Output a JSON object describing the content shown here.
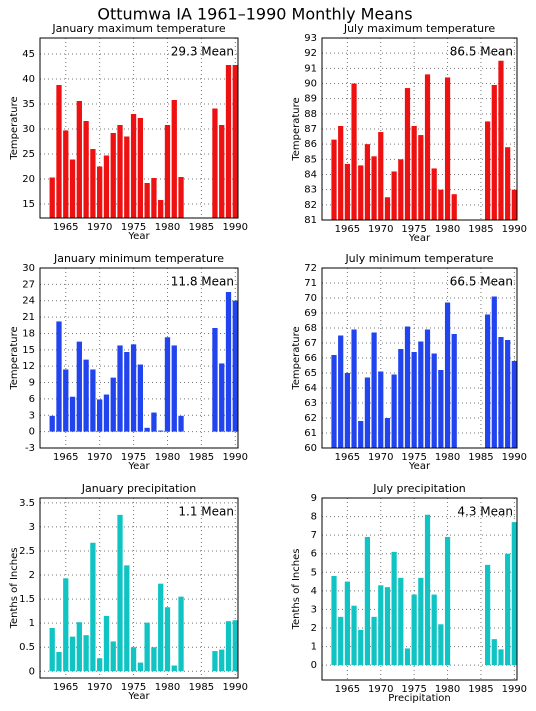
{
  "title": "Ottumwa IA  1961–1990 Monthly Means",
  "chart_data": [
    {
      "type": "bar",
      "title": "January maximum temperature",
      "xlabel": "Year",
      "ylabel": "Temperature",
      "annotation": "29.3  Mean",
      "color": "#ee1111",
      "x": [
        1963,
        1964,
        1965,
        1966,
        1967,
        1968,
        1969,
        1970,
        1971,
        1972,
        1973,
        1974,
        1975,
        1976,
        1977,
        1978,
        1979,
        1980,
        1981,
        1982,
        1987,
        1988,
        1989,
        1990
      ],
      "values": [
        20.3,
        38.8,
        29.7,
        23.9,
        35.6,
        31.6,
        26,
        22.5,
        24.7,
        29.2,
        30.8,
        28.5,
        33,
        32.2,
        19.2,
        20.2,
        15.8,
        30.8,
        35.8,
        20.4,
        34.1,
        30.8,
        42.8,
        42.8
      ],
      "xlim": [
        1961.2,
        1990.4
      ],
      "xticks": [
        1965,
        1970,
        1975,
        1980,
        1985,
        1990
      ],
      "ylim": [
        12.2,
        48.2
      ],
      "yticks": [
        15,
        20,
        25,
        30,
        35,
        40,
        45
      ],
      "grid": true
    },
    {
      "type": "bar",
      "title": "July maximum temperature",
      "xlabel": "Year",
      "ylabel": "Temperature",
      "annotation": "86.5  Mean",
      "color": "#ee1111",
      "x": [
        1963,
        1964,
        1965,
        1966,
        1967,
        1968,
        1969,
        1970,
        1971,
        1972,
        1973,
        1974,
        1975,
        1976,
        1977,
        1978,
        1979,
        1980,
        1981,
        1986,
        1987,
        1988,
        1989,
        1990
      ],
      "values": [
        86.3,
        87.2,
        84.7,
        90,
        84.6,
        86,
        85.2,
        86.8,
        82.5,
        84.2,
        85,
        89.7,
        87.2,
        86.6,
        90.6,
        84.4,
        83,
        90.4,
        82.7,
        87.5,
        89.9,
        91.5,
        85.8,
        83
      ],
      "xlim": [
        1961.2,
        1990.4
      ],
      "xticks": [
        1965,
        1970,
        1975,
        1980,
        1985,
        1990
      ],
      "ylim": [
        81,
        93
      ],
      "yticks": [
        81,
        82,
        83,
        84,
        85,
        86,
        87,
        88,
        89,
        90,
        91,
        92,
        93
      ],
      "grid": true
    },
    {
      "type": "bar",
      "title": "January minimum temperature",
      "xlabel": "Year",
      "ylabel": "Temperature",
      "annotation": "11.8  Mean",
      "color": "#2244ee",
      "x": [
        1963,
        1964,
        1965,
        1966,
        1967,
        1968,
        1969,
        1970,
        1971,
        1972,
        1973,
        1974,
        1975,
        1976,
        1977,
        1978,
        1979,
        1980,
        1981,
        1982,
        1987,
        1988,
        1989,
        1990
      ],
      "values": [
        2.9,
        20.2,
        11.4,
        6.4,
        16.5,
        13.2,
        11.4,
        5.9,
        6.8,
        9.9,
        15.8,
        14.6,
        16,
        12.3,
        0.7,
        3.5,
        0.2,
        17.3,
        15.8,
        2.9,
        19,
        12.5,
        25.6,
        24
      ],
      "xlim": [
        1961.2,
        1990.4
      ],
      "xticks": [
        1965,
        1970,
        1975,
        1980,
        1985,
        1990
      ],
      "ylim": [
        -3,
        30
      ],
      "yticks": [
        -3,
        0,
        3,
        6,
        9,
        12,
        15,
        18,
        21,
        24,
        27,
        30
      ],
      "grid": true
    },
    {
      "type": "bar",
      "title": "July minimum temperature",
      "xlabel": "Year",
      "ylabel": "Temperature",
      "annotation": "66.5  Mean",
      "color": "#2244ee",
      "x": [
        1963,
        1964,
        1965,
        1966,
        1967,
        1968,
        1969,
        1970,
        1971,
        1972,
        1973,
        1974,
        1975,
        1976,
        1977,
        1978,
        1979,
        1980,
        1981,
        1986,
        1987,
        1988,
        1989,
        1990
      ],
      "values": [
        66.2,
        67.5,
        65,
        67.9,
        61.8,
        64.7,
        67.7,
        65.1,
        62,
        64.9,
        66.6,
        68.1,
        66.4,
        67.1,
        67.9,
        66.3,
        65.2,
        69.7,
        67.6,
        68.9,
        70.1,
        67.4,
        67.2,
        65.8
      ],
      "xlim": [
        1961.2,
        1990.4
      ],
      "xticks": [
        1965,
        1970,
        1975,
        1980,
        1985,
        1990
      ],
      "ylim": [
        60,
        72
      ],
      "yticks": [
        60,
        61,
        62,
        63,
        64,
        65,
        66,
        67,
        68,
        69,
        70,
        71,
        72
      ],
      "grid": true
    },
    {
      "type": "bar",
      "title": "January precipitation",
      "xlabel": "Year",
      "ylabel": "Tenths of Inches",
      "annotation": "1.1  Mean",
      "color": "#11c4c4",
      "x": [
        1963,
        1964,
        1965,
        1966,
        1967,
        1968,
        1969,
        1970,
        1971,
        1972,
        1973,
        1974,
        1975,
        1976,
        1977,
        1978,
        1979,
        1980,
        1981,
        1982,
        1987,
        1988,
        1989,
        1990
      ],
      "values": [
        0.9,
        0.4,
        1.93,
        0.72,
        1.02,
        0.75,
        2.67,
        0.27,
        1.15,
        0.62,
        3.25,
        2.2,
        0.5,
        0.18,
        1.01,
        0.5,
        1.82,
        1.33,
        0.12,
        1.55,
        0.42,
        0.45,
        1.04,
        1.06
      ],
      "xlim": [
        1961.2,
        1990.4
      ],
      "xticks": [
        1965,
        1970,
        1975,
        1980,
        1985,
        1990
      ],
      "ylim": [
        -0.14,
        3.6
      ],
      "yticks": [
        0,
        0.5,
        1,
        1.5,
        2,
        2.5,
        3,
        3.5
      ],
      "grid": true
    },
    {
      "type": "bar",
      "title": "July precipitation",
      "xlabel": "Precipitation",
      "ylabel": "Tenths of Inches",
      "annotation": "4.3  Mean",
      "color": "#11c4c4",
      "x": [
        1963,
        1964,
        1965,
        1966,
        1967,
        1968,
        1969,
        1970,
        1971,
        1972,
        1973,
        1974,
        1975,
        1976,
        1977,
        1978,
        1979,
        1980,
        1986,
        1987,
        1988,
        1989,
        1990
      ],
      "values": [
        4.8,
        2.6,
        4.5,
        3.2,
        1.9,
        6.9,
        2.6,
        4.3,
        4.2,
        6.1,
        4.7,
        0.9,
        3.8,
        4.7,
        8.1,
        3.8,
        2.2,
        6.9,
        5.4,
        1.4,
        0.85,
        6,
        7.7
      ],
      "xlim": [
        1961.2,
        1990.4
      ],
      "xticks": [
        1965,
        1970,
        1975,
        1980,
        1985,
        1990
      ],
      "ylim": [
        -0.8,
        9
      ],
      "yticks": [
        0,
        1,
        2,
        3,
        4,
        5,
        6,
        7,
        8,
        9
      ],
      "grid": true
    }
  ]
}
